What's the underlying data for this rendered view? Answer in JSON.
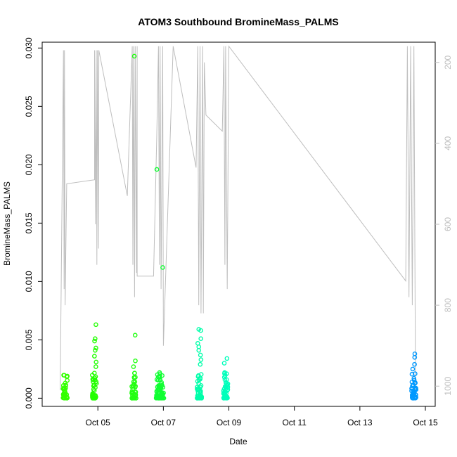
{
  "chart_data": {
    "type": "scatter",
    "title": "ATOM3 Southbound BromineMass_PALMS",
    "xlabel": "Date",
    "ylabel": "BromineMass_PALMS",
    "x_ticks": [
      "Oct 05",
      "Oct 07",
      "Oct 09",
      "Oct 11",
      "Oct 13",
      "Oct 15"
    ],
    "x_tick_days": [
      5,
      7,
      9,
      11,
      13,
      15
    ],
    "xlim_days": [
      3.3,
      15.3
    ],
    "ylim": [
      -0.0007,
      0.0305
    ],
    "y_ticks": [
      "0.000",
      "0.005",
      "0.010",
      "0.015",
      "0.020",
      "0.025",
      "0.030"
    ],
    "y_tick_values": [
      0.0,
      0.005,
      0.01,
      0.015,
      0.02,
      0.025,
      0.03
    ],
    "secondary_axis": {
      "label": "",
      "ylim_reversed": [
        1050,
        150
      ],
      "ticks": [
        "200",
        "400",
        "600",
        "800",
        "1000"
      ],
      "tick_values": [
        200,
        400,
        600,
        800,
        1000
      ],
      "color": "#bebebe"
    },
    "grid": false,
    "legend": "none",
    "scatter_clusters": [
      {
        "day": 4.0,
        "color": "#33ff00",
        "outliers": [
          0.0013,
          0.0011,
          0.0008
        ]
      },
      {
        "day": 4.9,
        "color": "#22ff00",
        "outliers": [
          0.0063,
          0.0051,
          0.0049,
          0.0043,
          0.0041,
          0.0036,
          0.0031,
          0.0027
        ]
      },
      {
        "day": 6.1,
        "color": "#22ff11",
        "outliers": [
          0.0293,
          0.0054,
          0.0032,
          0.0027,
          0.0018,
          0.0014
        ]
      },
      {
        "day": 6.85,
        "color": "#11ff33",
        "outliers": [
          0.0196,
          0.0022,
          0.0016,
          0.0011
        ]
      },
      {
        "day": 6.95,
        "color": "#11ff33",
        "outliers": [
          0.0112
        ]
      },
      {
        "day": 8.1,
        "color": "#00ffaa",
        "outliers": [
          0.0059,
          0.0058,
          0.0051,
          0.0047,
          0.0044,
          0.0041,
          0.0037,
          0.0033,
          0.0029
        ]
      },
      {
        "day": 8.9,
        "color": "#00ffbb",
        "outliers": [
          0.0034,
          0.003,
          0.0022,
          0.0021,
          0.0018
        ]
      },
      {
        "day": 14.65,
        "color": "#0099ff",
        "outliers": [
          0.0038,
          0.0035,
          0.0029,
          0.0025,
          0.0021,
          0.0017
        ]
      }
    ],
    "altitude_trace": [
      [
        3.85,
        1010
      ],
      [
        3.95,
        170
      ],
      [
        3.97,
        760
      ],
      [
        3.98,
        170
      ],
      [
        4.0,
        800
      ],
      [
        4.05,
        500
      ],
      [
        4.9,
        490
      ],
      [
        4.9,
        170
      ],
      [
        4.93,
        600
      ],
      [
        4.95,
        170
      ],
      [
        4.97,
        700
      ],
      [
        4.99,
        170
      ],
      [
        5.02,
        660
      ],
      [
        5.03,
        170
      ],
      [
        5.9,
        530
      ],
      [
        6.05,
        160
      ],
      [
        6.07,
        700
      ],
      [
        6.09,
        160
      ],
      [
        6.12,
        780
      ],
      [
        6.14,
        160
      ],
      [
        6.18,
        720
      ],
      [
        6.2,
        160
      ],
      [
        6.2,
        728
      ],
      [
        6.7,
        728
      ],
      [
        6.8,
        380
      ],
      [
        6.85,
        160
      ],
      [
        6.88,
        700
      ],
      [
        6.9,
        160
      ],
      [
        6.93,
        760
      ],
      [
        6.98,
        160
      ],
      [
        7.0,
        900
      ],
      [
        7.3,
        160
      ],
      [
        8.0,
        460
      ],
      [
        8.05,
        160
      ],
      [
        8.08,
        800
      ],
      [
        8.12,
        160
      ],
      [
        8.15,
        820
      ],
      [
        8.2,
        160
      ],
      [
        8.22,
        820
      ],
      [
        8.25,
        200
      ],
      [
        8.3,
        330
      ],
      [
        8.8,
        370
      ],
      [
        8.85,
        160
      ],
      [
        8.88,
        700
      ],
      [
        8.9,
        160
      ],
      [
        8.95,
        760
      ],
      [
        9.0,
        160
      ],
      [
        14.4,
        740
      ],
      [
        14.45,
        160
      ],
      [
        14.5,
        780
      ],
      [
        14.55,
        160
      ],
      [
        14.6,
        800
      ],
      [
        14.65,
        160
      ],
      [
        14.7,
        1010
      ]
    ]
  }
}
